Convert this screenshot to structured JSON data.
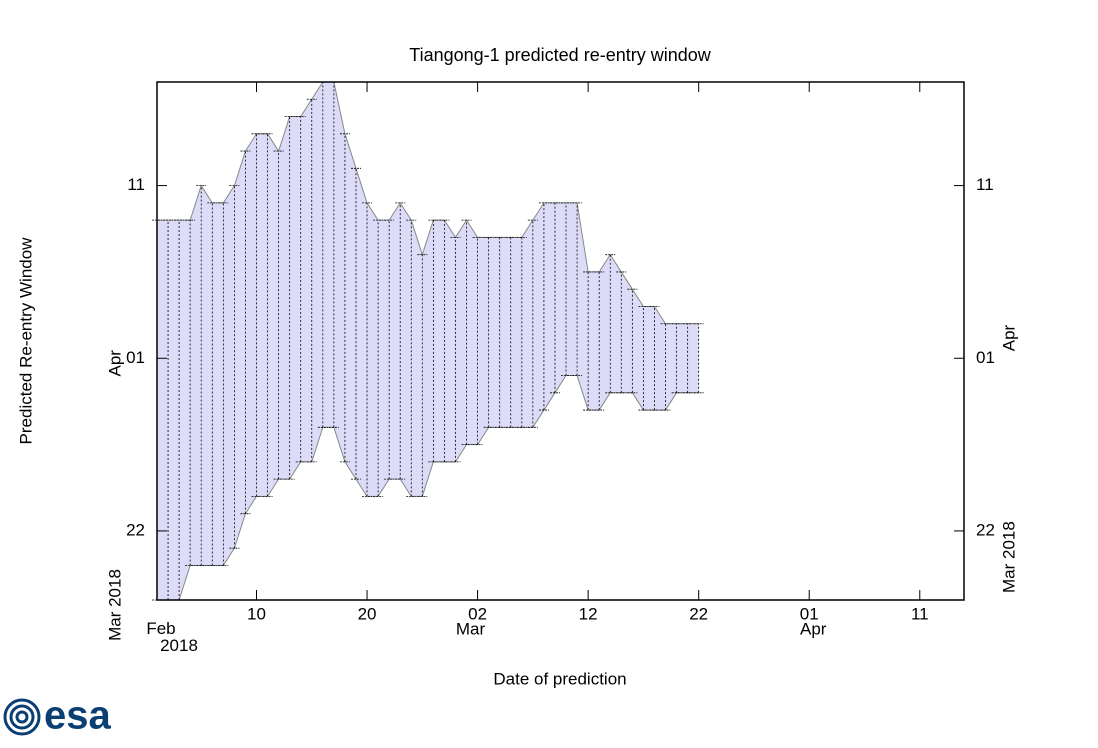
{
  "chart_data": {
    "type": "range",
    "title": "Tiangong-1 predicted re-entry window",
    "xlabel": "Date of prediction",
    "ylabel": "Predicted Re-entry Window",
    "color": "#dcdcf8",
    "edge_color": "#888888",
    "xlim": [
      "2018-02-01",
      "2018-04-15"
    ],
    "ylim": [
      "2018-03-18",
      "2018-04-17"
    ],
    "xticks": [
      {
        "value": "2018-02-10",
        "label": "10"
      },
      {
        "value": "2018-02-20",
        "label": "20"
      },
      {
        "value": "2018-03-02",
        "label": "02"
      },
      {
        "value": "2018-03-12",
        "label": "12"
      },
      {
        "value": "2018-03-22",
        "label": "22"
      },
      {
        "value": "2018-04-01",
        "label": "01"
      },
      {
        "value": "2018-04-11",
        "label": "11"
      }
    ],
    "x_month_labels": [
      {
        "value": "2018-02-01",
        "label": "Feb 2018"
      },
      {
        "value": "2018-03-01",
        "label": "Mar"
      },
      {
        "value": "2018-04-01",
        "label": "Apr"
      }
    ],
    "yticks": [
      {
        "value": "2018-03-22",
        "label": "22"
      },
      {
        "value": "2018-04-01",
        "label": "01"
      },
      {
        "value": "2018-04-11",
        "label": "11"
      }
    ],
    "y_month_labels": [
      {
        "value": "2018-03-18",
        "label": "Mar 2018"
      },
      {
        "value": "2018-04-01",
        "label": "Apr"
      }
    ],
    "x": [
      "2018-02-01",
      "2018-02-02",
      "2018-02-03",
      "2018-02-04",
      "2018-02-05",
      "2018-02-06",
      "2018-02-07",
      "2018-02-08",
      "2018-02-09",
      "2018-02-10",
      "2018-02-11",
      "2018-02-12",
      "2018-02-13",
      "2018-02-14",
      "2018-02-15",
      "2018-02-16",
      "2018-02-17",
      "2018-02-18",
      "2018-02-19",
      "2018-02-20",
      "2018-02-21",
      "2018-02-22",
      "2018-02-23",
      "2018-02-24",
      "2018-02-25",
      "2018-02-26",
      "2018-02-27",
      "2018-02-28",
      "2018-03-01",
      "2018-03-02",
      "2018-03-03",
      "2018-03-04",
      "2018-03-05",
      "2018-03-06",
      "2018-03-07",
      "2018-03-08",
      "2018-03-09",
      "2018-03-10",
      "2018-03-11",
      "2018-03-12",
      "2018-03-13",
      "2018-03-14",
      "2018-03-15",
      "2018-03-16",
      "2018-03-17",
      "2018-03-18",
      "2018-03-19",
      "2018-03-20",
      "2018-03-21",
      "2018-03-22"
    ],
    "low": [
      "2018-03-18",
      "2018-03-18",
      "2018-03-18",
      "2018-03-20",
      "2018-03-20",
      "2018-03-20",
      "2018-03-20",
      "2018-03-21",
      "2018-03-23",
      "2018-03-24",
      "2018-03-24",
      "2018-03-25",
      "2018-03-25",
      "2018-03-26",
      "2018-03-26",
      "2018-03-28",
      "2018-03-28",
      "2018-03-26",
      "2018-03-25",
      "2018-03-24",
      "2018-03-24",
      "2018-03-25",
      "2018-03-25",
      "2018-03-24",
      "2018-03-24",
      "2018-03-26",
      "2018-03-26",
      "2018-03-26",
      "2018-03-27",
      "2018-03-27",
      "2018-03-28",
      "2018-03-28",
      "2018-03-28",
      "2018-03-28",
      "2018-03-28",
      "2018-03-29",
      "2018-03-30",
      "2018-03-31",
      "2018-03-31",
      "2018-03-29",
      "2018-03-29",
      "2018-03-30",
      "2018-03-30",
      "2018-03-30",
      "2018-03-29",
      "2018-03-29",
      "2018-03-29",
      "2018-03-30",
      "2018-03-30",
      "2018-03-30"
    ],
    "high": [
      "2018-04-09",
      "2018-04-09",
      "2018-04-09",
      "2018-04-09",
      "2018-04-11",
      "2018-04-10",
      "2018-04-10",
      "2018-04-11",
      "2018-04-13",
      "2018-04-14",
      "2018-04-14",
      "2018-04-13",
      "2018-04-15",
      "2018-04-15",
      "2018-04-16",
      "2018-04-17",
      "2018-04-17",
      "2018-04-14",
      "2018-04-12",
      "2018-04-10",
      "2018-04-09",
      "2018-04-09",
      "2018-04-10",
      "2018-04-09",
      "2018-04-07",
      "2018-04-09",
      "2018-04-09",
      "2018-04-08",
      "2018-04-09",
      "2018-04-08",
      "2018-04-08",
      "2018-04-08",
      "2018-04-08",
      "2018-04-08",
      "2018-04-09",
      "2018-04-10",
      "2018-04-10",
      "2018-04-10",
      "2018-04-10",
      "2018-04-06",
      "2018-04-06",
      "2018-04-07",
      "2018-04-06",
      "2018-04-05",
      "2018-04-04",
      "2018-04-04",
      "2018-04-03",
      "2018-04-03",
      "2018-04-03",
      "2018-04-03"
    ]
  },
  "logo_text": "esa"
}
